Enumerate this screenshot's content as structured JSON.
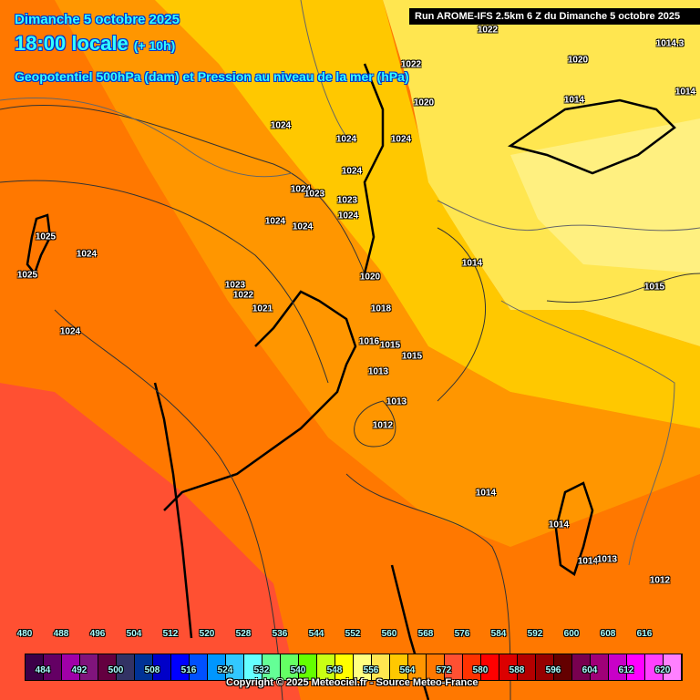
{
  "header": {
    "date": "Dimanche 5 octobre 2025",
    "time": "18:00 locale",
    "lead": "(+ 10h)",
    "parameter": "Geopotentiel 500hPa (dam) et Pression au niveau de la mer (hPa)",
    "run": "Run AROME-IFS 2.5km 6 Z du Dimanche 5 octobre 2025"
  },
  "pressure_labels": [
    "1022",
    "1014.3",
    "1020",
    "1022",
    "1014",
    "1020",
    "1014",
    "1024",
    "1024",
    "1024",
    "1024",
    "1024",
    "1023",
    "1023",
    "1024",
    "1024",
    "1024",
    "1025",
    "1024",
    "1025",
    "1014",
    "1015",
    "1020",
    "1023",
    "1022",
    "1021",
    "1018",
    "1024",
    "1016",
    "1015",
    "1015",
    "1013",
    "1013",
    "1012",
    "1014",
    "1014",
    "1014",
    "1013",
    "1012"
  ],
  "legend": {
    "unit": "dam",
    "top_labels": [
      "480",
      "488",
      "496",
      "504",
      "512",
      "520",
      "528",
      "536",
      "544",
      "552",
      "560",
      "568",
      "576",
      "584",
      "592",
      "600",
      "608",
      "616"
    ],
    "bottom_labels": [
      "484",
      "492",
      "500",
      "508",
      "516",
      "524",
      "532",
      "540",
      "548",
      "556",
      "564",
      "572",
      "580",
      "588",
      "596",
      "604",
      "612",
      "620"
    ],
    "colors": [
      "#3c0048",
      "#640064",
      "#a000a8",
      "#80147c",
      "#640040",
      "#323264",
      "#003296",
      "#0000c8",
      "#0000ff",
      "#0050ff",
      "#0096ff",
      "#32c8ff",
      "#64ffff",
      "#64ff96",
      "#64ff64",
      "#64ff00",
      "#c8ff14",
      "#ffff00",
      "#ffff80",
      "#ffe650",
      "#ffc800",
      "#ff9600",
      "#ff7800",
      "#ff5032",
      "#ff3200",
      "#ff0000",
      "#dc0000",
      "#b40000",
      "#960000",
      "#640000",
      "#780050",
      "#a00078",
      "#c800c8",
      "#ff00ff",
      "#ff40ff",
      "#ff80ff"
    ]
  },
  "copyright": "Copyright © 2025 Meteociel.fr - Source Meteo-France"
}
